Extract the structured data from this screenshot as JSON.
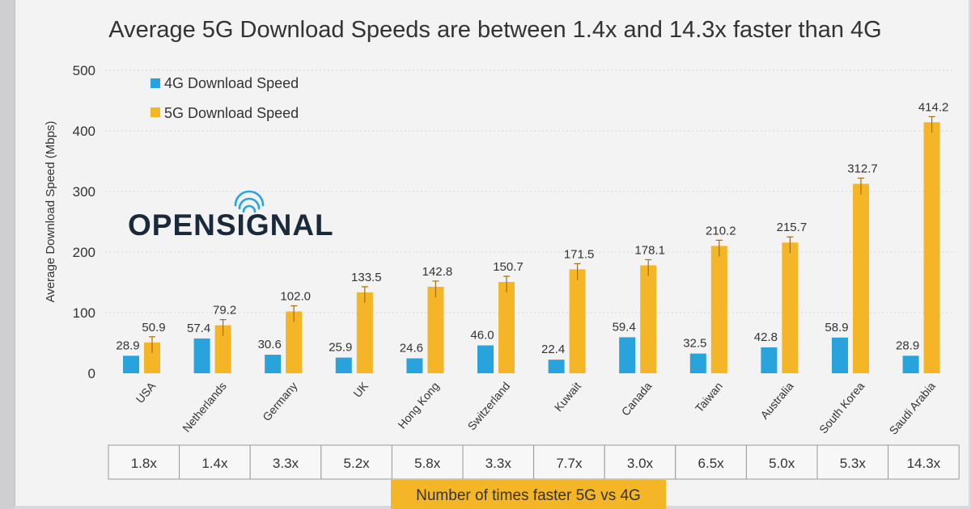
{
  "chart_data": {
    "type": "bar",
    "title": "Average 5G Download Speeds are between 1.4x and 14.3x faster than 4G",
    "ylabel": "Average Download Speed (Mbps)",
    "xlabel": "",
    "ylim": [
      0,
      500
    ],
    "yticks": [
      0,
      100,
      200,
      300,
      400,
      500
    ],
    "legend": "top-left",
    "categories": [
      "USA",
      "Netherlands",
      "Germany",
      "UK",
      "Hong Kong",
      "Switzerland",
      "Kuwait",
      "Canada",
      "Taiwan",
      "Australia",
      "South Korea",
      "Saudi Arabia"
    ],
    "series": [
      {
        "name": "4G Download Speed",
        "color": "#29a3dc",
        "values": [
          28.9,
          57.4,
          30.6,
          25.9,
          24.6,
          46.0,
          22.4,
          59.4,
          32.5,
          42.8,
          58.9,
          28.9
        ]
      },
      {
        "name": "5G Download Speed",
        "color": "#f4b526",
        "values": [
          50.9,
          79.2,
          102.0,
          133.5,
          142.8,
          150.7,
          171.5,
          178.1,
          210.2,
          215.7,
          312.7,
          414.2
        ]
      }
    ],
    "labels_4g": [
      "28.9",
      "57.4",
      "30.6",
      "25.9",
      "24.6",
      "46.0",
      "22.4",
      "59.4",
      "32.5",
      "42.8",
      "58.9",
      "28.9"
    ],
    "labels_5g": [
      "50.9",
      "79.2",
      "102.0",
      "133.5",
      "142.8",
      "150.7",
      "171.5",
      "178.1",
      "210.2",
      "215.7",
      "312.7",
      "414.2"
    ],
    "multipliers": [
      "1.8x",
      "1.4x",
      "3.3x",
      "5.2x",
      "5.8x",
      "3.3x",
      "7.7x",
      "3.0x",
      "6.5x",
      "5.0x",
      "5.3x",
      "14.3x"
    ],
    "footer_label": "Number of times faster 5G vs 4G"
  },
  "brand": {
    "name": "OPENSIGNAL"
  },
  "colors": {
    "bar4g": "#29a3dc",
    "bar5g": "#f4b526",
    "footer_bg": "#f4b526",
    "grid": "#d6d6d6"
  }
}
